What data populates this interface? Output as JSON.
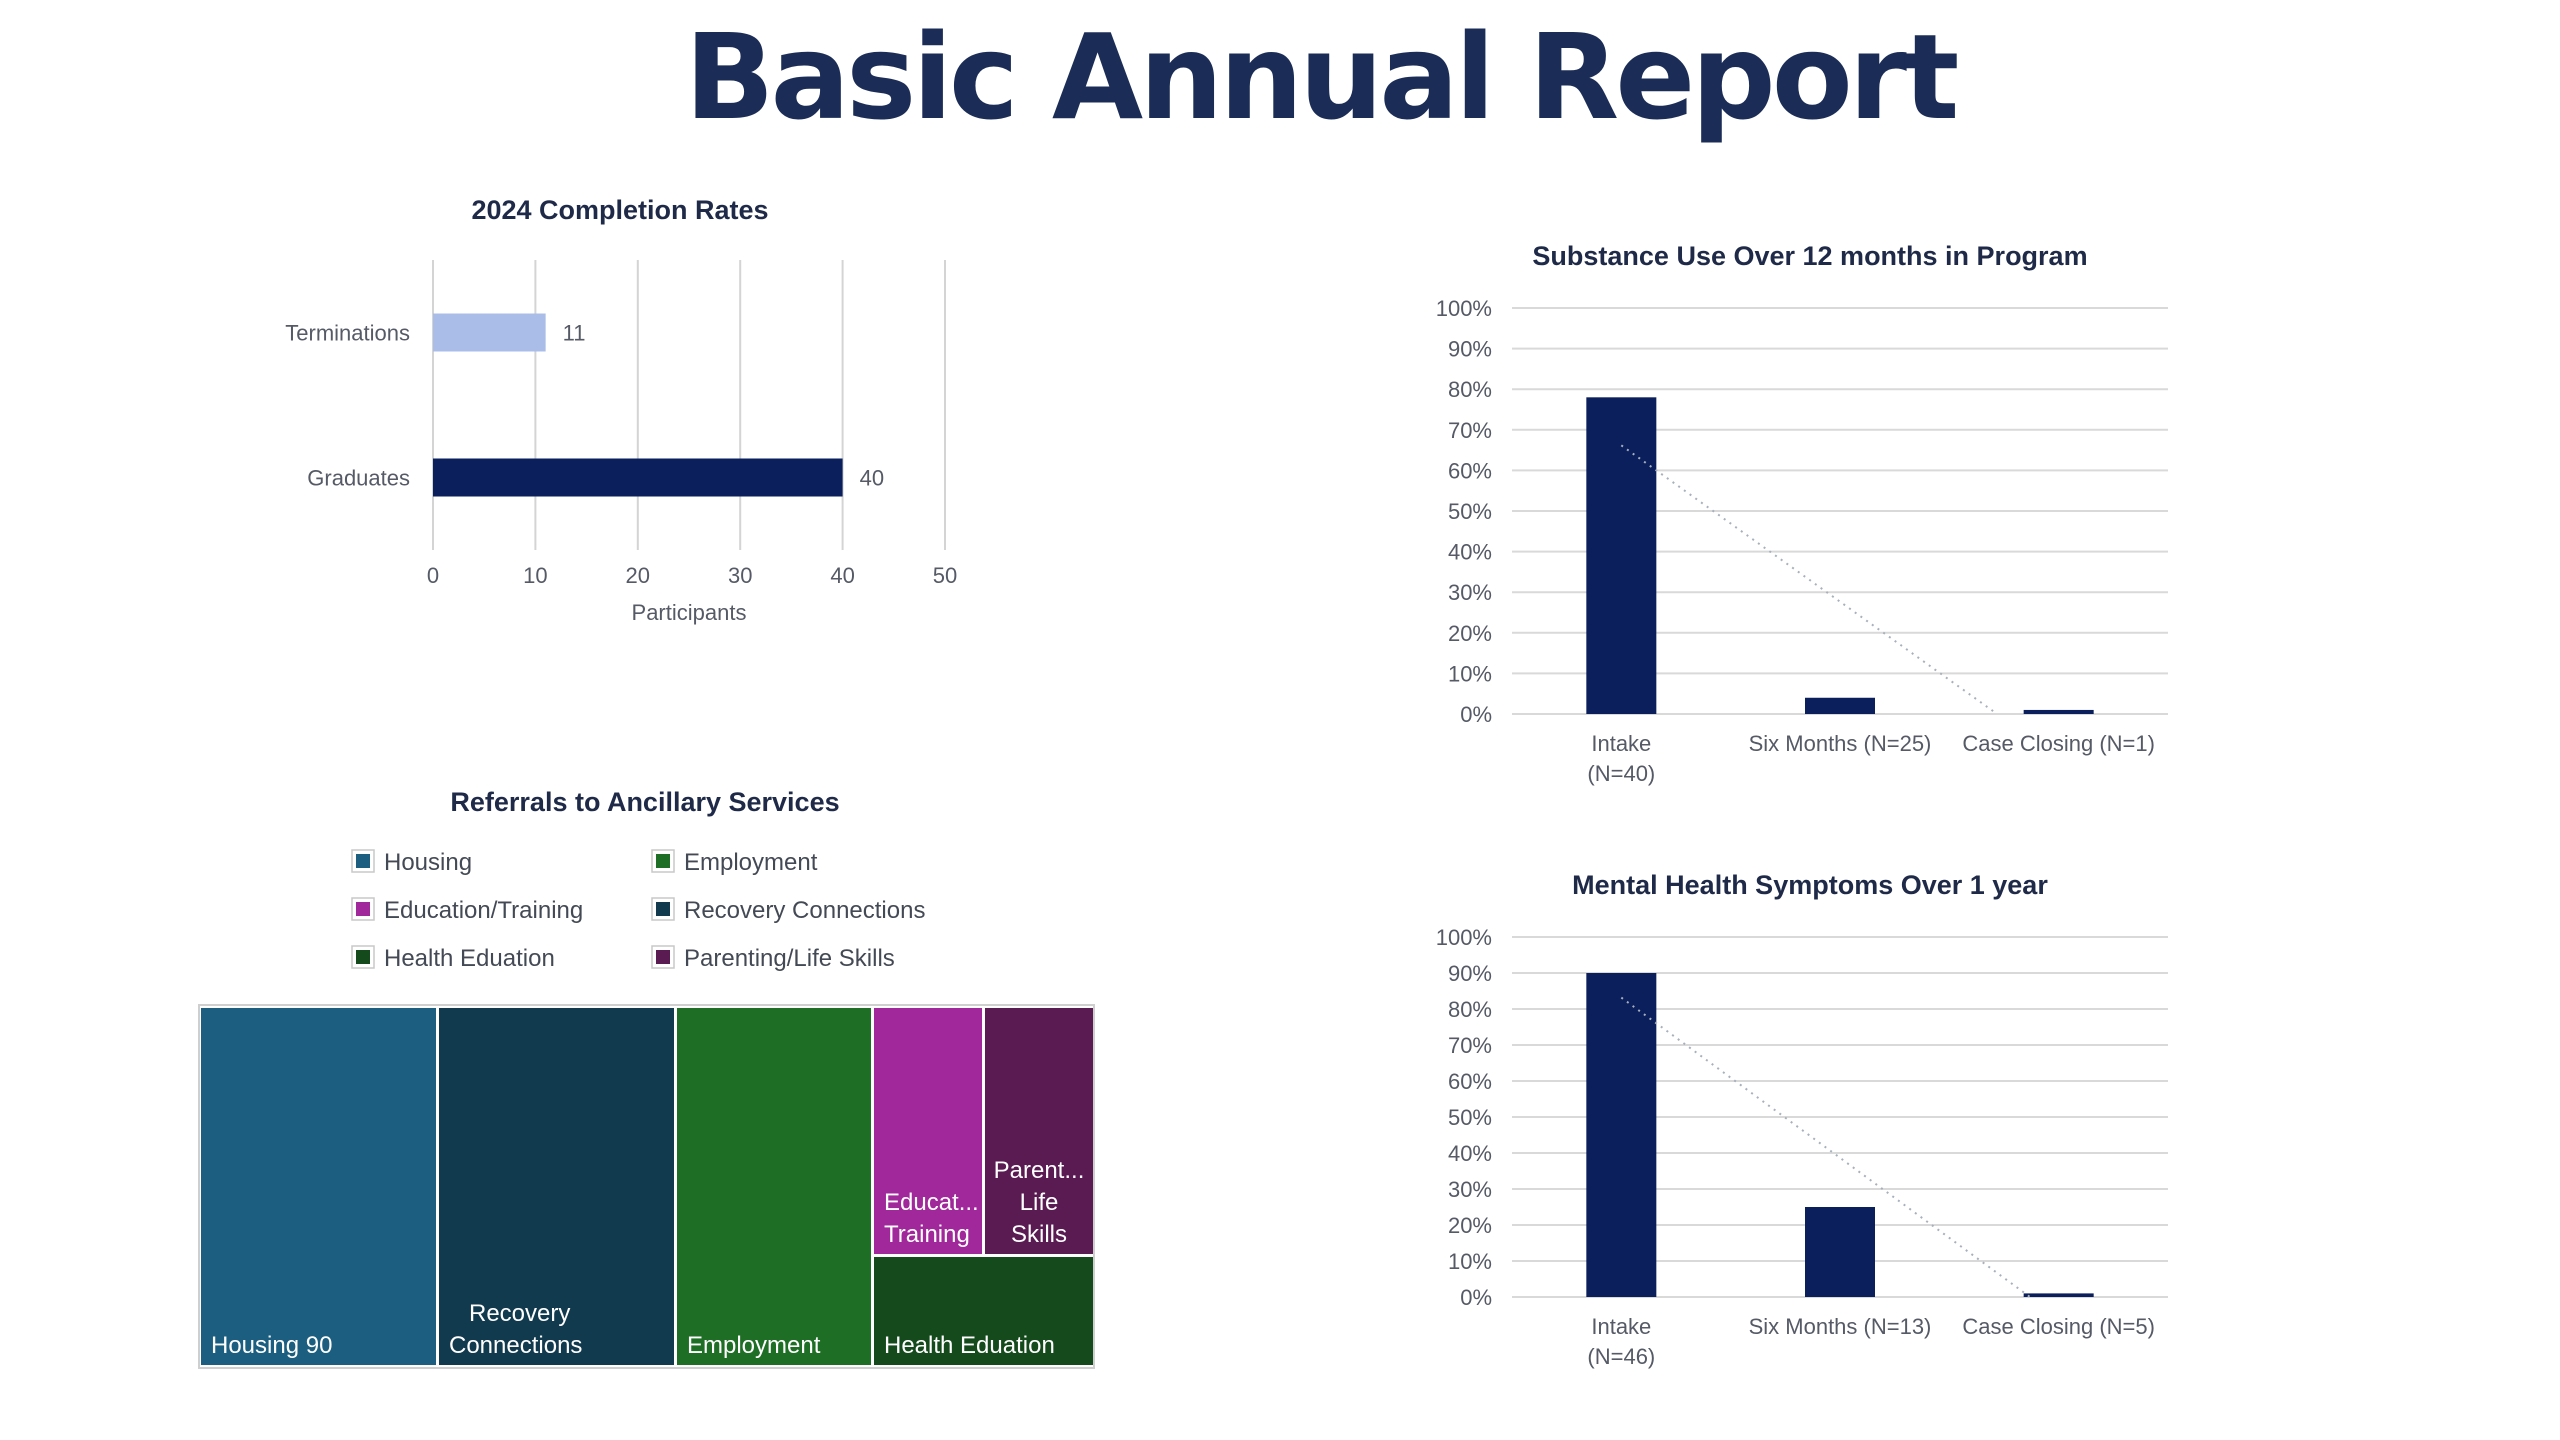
{
  "report": {
    "title": "Basic Annual Report"
  },
  "chart_data": [
    {
      "id": "completion",
      "type": "bar",
      "orientation": "horizontal",
      "title": "2024 Completion Rates",
      "categories": [
        "Terminations",
        "Graduates"
      ],
      "values": [
        11,
        40
      ],
      "data_labels": [
        "11",
        "40"
      ],
      "colors": [
        "#a9bde8",
        "#0a1f5c"
      ],
      "xlabel": "Participants",
      "xlim": [
        0,
        50
      ],
      "xticks": [
        "0",
        "10",
        "20",
        "30",
        "40",
        "50"
      ],
      "grid": true
    },
    {
      "id": "treemap",
      "type": "treemap",
      "title": "Referrals to Ancillary Services",
      "legend": [
        {
          "label": "Housing",
          "color": "#1b5e80"
        },
        {
          "label": "Employment",
          "color": "#1f6e26"
        },
        {
          "label": "Education/Training",
          "color": "#a0289a"
        },
        {
          "label": "Recovery Connections",
          "color": "#123a4e"
        },
        {
          "label": "Health Eduation",
          "color": "#154a1c"
        },
        {
          "label": "Parenting/Life Skills",
          "color": "#5a1a52"
        }
      ],
      "tiles": [
        {
          "label": "Housing 90",
          "color": "#1b5e80"
        },
        {
          "label": "Recovery Connections",
          "color": "#123a4e"
        },
        {
          "label": "Employment",
          "color": "#1f6e26"
        },
        {
          "label": "Educat... Training",
          "color": "#a0289a"
        },
        {
          "label": "Parent... Life Skills",
          "color": "#5a1a52"
        },
        {
          "label": "Health Eduation",
          "color": "#154a1c"
        }
      ]
    },
    {
      "id": "substance",
      "type": "bar",
      "title": "Substance Use Over 12 months in Program",
      "categories": [
        "Intake (N=40)",
        "Six Months (N=25)",
        "Case Closing (N=1)"
      ],
      "values": [
        78,
        4,
        1
      ],
      "ylim": [
        0,
        100
      ],
      "yticks": [
        "0%",
        "10%",
        "20%",
        "30%",
        "40%",
        "50%",
        "60%",
        "70%",
        "80%",
        "90%",
        "100%"
      ],
      "trendline": "linear dotted",
      "color": "#0a1f5c",
      "grid": true
    },
    {
      "id": "mental",
      "type": "bar",
      "title": "Mental Health Symptoms Over 1 year",
      "categories": [
        "Intake (N=46)",
        "Six Months (N=13)",
        "Case Closing (N=5)"
      ],
      "values": [
        90,
        25,
        1
      ],
      "ylim": [
        0,
        100
      ],
      "yticks": [
        "0%",
        "10%",
        "20%",
        "30%",
        "40%",
        "50%",
        "60%",
        "70%",
        "80%",
        "90%",
        "100%"
      ],
      "trendline": "linear dotted",
      "color": "#0a1f5c",
      "grid": true
    }
  ]
}
